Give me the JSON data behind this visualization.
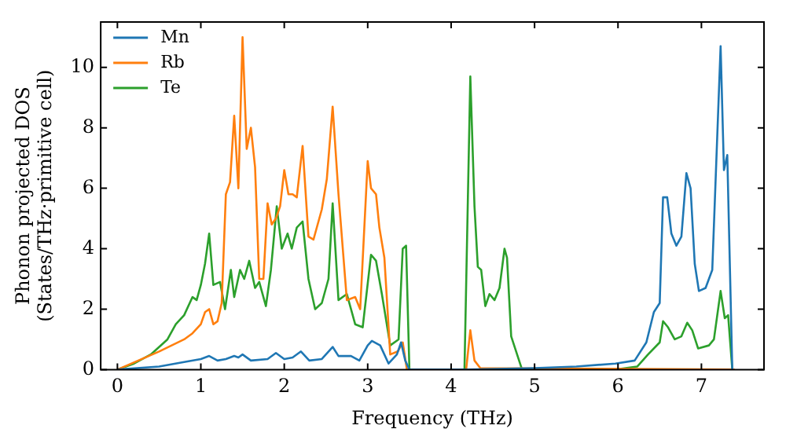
{
  "chart_data": {
    "type": "line",
    "xlabel": "Frequency (THz)",
    "ylabel": "Phonon projected DOS\n(States/THz·primitive cell)",
    "xlim": [
      -0.2,
      7.75
    ],
    "ylim": [
      0,
      11.5
    ],
    "xticks": [
      0,
      1,
      2,
      3,
      4,
      5,
      6,
      7
    ],
    "yticks": [
      0,
      2,
      4,
      6,
      8,
      10
    ],
    "grid": false,
    "legend": "top left",
    "line_style": "solid",
    "marker": "none",
    "series": [
      {
        "name": "Mn",
        "color": "#1f77b4",
        "x": [
          0,
          0.5,
          0.8,
          1.0,
          1.1,
          1.2,
          1.3,
          1.4,
          1.45,
          1.5,
          1.6,
          1.8,
          1.9,
          2.0,
          2.1,
          2.2,
          2.3,
          2.45,
          2.58,
          2.65,
          2.8,
          2.9,
          3.0,
          3.05,
          3.15,
          3.25,
          3.35,
          3.4,
          3.45,
          3.5,
          4.2,
          5.0,
          5.5,
          5.97,
          6.2,
          6.34,
          6.43,
          6.5,
          6.54,
          6.59,
          6.64,
          6.7,
          6.76,
          6.82,
          6.87,
          6.92,
          6.97,
          7.05,
          7.13,
          7.23,
          7.27,
          7.31,
          7.37
        ],
        "values": [
          0,
          0.1,
          0.25,
          0.35,
          0.45,
          0.3,
          0.35,
          0.45,
          0.4,
          0.5,
          0.3,
          0.35,
          0.55,
          0.35,
          0.4,
          0.6,
          0.3,
          0.35,
          0.75,
          0.45,
          0.45,
          0.3,
          0.8,
          0.95,
          0.8,
          0.2,
          0.5,
          0.9,
          0.3,
          0,
          0,
          0.05,
          0.1,
          0.2,
          0.3,
          0.9,
          1.9,
          2.2,
          5.7,
          5.7,
          4.5,
          4.1,
          4.4,
          6.5,
          6.0,
          3.5,
          2.6,
          2.7,
          3.3,
          10.7,
          6.6,
          7.1,
          0
        ]
      },
      {
        "name": "Rb",
        "color": "#ff7f0e",
        "x": [
          0,
          0.5,
          0.8,
          0.9,
          1.0,
          1.05,
          1.1,
          1.15,
          1.2,
          1.25,
          1.3,
          1.35,
          1.4,
          1.45,
          1.5,
          1.55,
          1.6,
          1.65,
          1.7,
          1.75,
          1.8,
          1.85,
          1.9,
          1.95,
          2.0,
          2.05,
          2.1,
          2.15,
          2.22,
          2.29,
          2.35,
          2.45,
          2.51,
          2.58,
          2.65,
          2.75,
          2.85,
          2.91,
          3.0,
          3.04,
          3.1,
          3.14,
          3.2,
          3.27,
          3.36,
          3.42,
          3.47,
          4.18,
          4.23,
          4.28,
          4.35,
          7.4
        ],
        "values": [
          0,
          0.6,
          1.0,
          1.2,
          1.5,
          1.9,
          2.0,
          1.5,
          1.6,
          2.2,
          5.8,
          6.2,
          8.4,
          6.0,
          11.0,
          7.3,
          8.0,
          6.7,
          3.0,
          3.0,
          5.5,
          4.8,
          5.0,
          5.4,
          6.6,
          5.8,
          5.8,
          5.7,
          7.4,
          4.4,
          4.3,
          5.3,
          6.3,
          8.7,
          5.8,
          2.3,
          2.4,
          2.0,
          6.9,
          6.0,
          5.8,
          4.7,
          3.7,
          0.5,
          0.6,
          0.9,
          0,
          0,
          1.3,
          0.3,
          0.05,
          0
        ]
      },
      {
        "name": "Te",
        "color": "#2ca02c",
        "x": [
          0,
          0.2,
          0.4,
          0.6,
          0.7,
          0.8,
          0.9,
          0.95,
          1.0,
          1.05,
          1.1,
          1.15,
          1.23,
          1.29,
          1.36,
          1.4,
          1.47,
          1.52,
          1.58,
          1.65,
          1.7,
          1.78,
          1.84,
          1.91,
          1.97,
          2.04,
          2.09,
          2.15,
          2.22,
          2.29,
          2.37,
          2.45,
          2.53,
          2.58,
          2.65,
          2.75,
          2.85,
          2.94,
          3.04,
          3.1,
          3.17,
          3.27,
          3.37,
          3.42,
          3.46,
          3.5,
          4.16,
          4.23,
          4.28,
          4.32,
          4.36,
          4.41,
          4.46,
          4.52,
          4.58,
          4.64,
          4.67,
          4.72,
          4.85,
          5.97,
          6.23,
          6.36,
          6.5,
          6.54,
          6.6,
          6.68,
          6.76,
          6.83,
          6.89,
          6.96,
          7.09,
          7.15,
          7.23,
          7.28,
          7.32,
          7.37
        ],
        "values": [
          0,
          0.2,
          0.5,
          1.0,
          1.5,
          1.8,
          2.4,
          2.3,
          2.8,
          3.5,
          4.5,
          2.8,
          2.9,
          2.0,
          3.3,
          2.4,
          3.3,
          3.0,
          3.6,
          2.7,
          2.9,
          2.1,
          3.3,
          5.4,
          4.0,
          4.5,
          4.0,
          4.7,
          4.9,
          3.0,
          2.0,
          2.2,
          3.0,
          5.5,
          2.3,
          2.5,
          1.5,
          1.4,
          3.8,
          3.6,
          2.5,
          0.8,
          1.0,
          4.0,
          4.1,
          0,
          0,
          9.7,
          5.4,
          3.4,
          3.3,
          2.1,
          2.5,
          2.3,
          2.7,
          4.0,
          3.7,
          1.1,
          0,
          0,
          0.1,
          0.5,
          0.9,
          1.6,
          1.4,
          1.0,
          1.1,
          1.55,
          1.3,
          0.7,
          0.8,
          1.0,
          2.6,
          1.7,
          1.8,
          0
        ]
      }
    ]
  }
}
